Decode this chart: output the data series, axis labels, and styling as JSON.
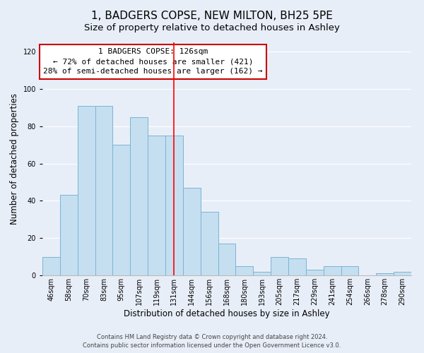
{
  "title": "1, BADGERS COPSE, NEW MILTON, BH25 5PE",
  "subtitle": "Size of property relative to detached houses in Ashley",
  "xlabel": "Distribution of detached houses by size in Ashley",
  "ylabel": "Number of detached properties",
  "bar_labels": [
    "46sqm",
    "58sqm",
    "70sqm",
    "83sqm",
    "95sqm",
    "107sqm",
    "119sqm",
    "131sqm",
    "144sqm",
    "156sqm",
    "168sqm",
    "180sqm",
    "193sqm",
    "205sqm",
    "217sqm",
    "229sqm",
    "241sqm",
    "254sqm",
    "266sqm",
    "278sqm",
    "290sqm"
  ],
  "bar_values": [
    10,
    43,
    91,
    91,
    70,
    85,
    75,
    75,
    47,
    34,
    17,
    5,
    2,
    10,
    9,
    3,
    5,
    5,
    0,
    1,
    2
  ],
  "bar_color": "#c5dff0",
  "bar_edge_color": "#7ab4d4",
  "vline_x": 7.0,
  "vline_label": "1 BADGERS COPSE: 126sqm",
  "annotation_line1": "← 72% of detached houses are smaller (421)",
  "annotation_line2": "28% of semi-detached houses are larger (162) →",
  "box_edge_color": "#cc0000",
  "ylim": [
    0,
    125
  ],
  "yticks": [
    0,
    20,
    40,
    60,
    80,
    100,
    120
  ],
  "footnote1": "Contains HM Land Registry data © Crown copyright and database right 2024.",
  "footnote2": "Contains public sector information licensed under the Open Government Licence v3.0.",
  "bg_color": "#e8eef8",
  "title_fontsize": 11,
  "subtitle_fontsize": 9.5,
  "ylabel_fontsize": 8.5,
  "xlabel_fontsize": 8.5,
  "tick_fontsize": 7,
  "annot_fontsize": 8,
  "footnote_fontsize": 6
}
